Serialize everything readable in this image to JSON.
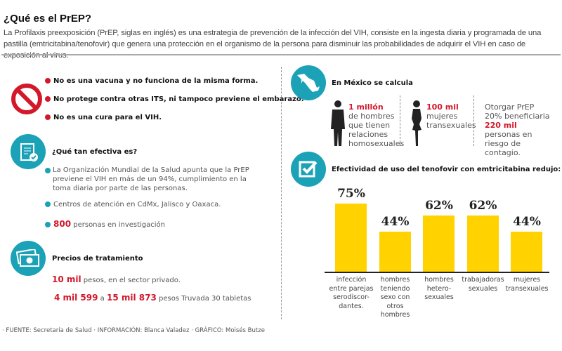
{
  "header": {
    "title": "¿Qué es el PrEP?",
    "intro": "La Profilaxis preexposición (PrEP, siglas en inglés) es una estrategia de prevención de la infección del VIH, consiste en la ingesta diaria y programada de una pastilla (emtricitabina/tenofovir) que genera una protección en el organismo de la persona para disminuir las probabilidades de adquirir el VIH en caso de exposición al virus."
  },
  "not_list": [
    "No es una vacuna y no funciona de la misma forma.",
    "No protege contra otras ITS, ni tampoco previene el embarazo.",
    "No es una cura para el VIH."
  ],
  "efectiva": {
    "title": "¿Qué tan efectiva es?",
    "items": [
      "La Organización Mundial de la Salud apunta que la PrEP previene el VIH en más de un 94%, cumplimiento en la toma diaria por parte de las personas.",
      "Centros de atención en CdMx, Jalisco y Oaxaca."
    ],
    "count": "800",
    "count_text": " personas en investigación"
  },
  "precios": {
    "title": "Precios de tratamiento",
    "p1_num": "10 mil",
    "p1_text": " pesos, en el sector privado.",
    "p2_a": "4 mil 599",
    "p2_mid": " a ",
    "p2_b": "15 mil 873",
    "p2_text": " pesos Truvada 30 tabletas"
  },
  "mexico": {
    "title": "En México se calcula",
    "men_num": "1 millón",
    "men_text": "de hombres que tienen relaciones homosexuales",
    "women_num": "100 mil",
    "women_text": "mujeres transexuales",
    "prep_a": "Otorgar PrEP 20% beneficiaria ",
    "prep_num": "220 mil",
    "prep_b": " personas en riesgo de contagio."
  },
  "footer": "· FUENTE: Secretaría de Salud · INFORMACIÓN: Blanca Valadez · GRÁFICO: Moisés Butze",
  "colors": {
    "teal": "#1ba2b7",
    "red": "#d3182a",
    "bar": "#ffd200"
  },
  "chart_data": {
    "type": "bar",
    "title": "Efectividad de uso del tenofovir con emtricitabina redujo:",
    "categories": [
      "infección entre parejas serodiscor-dantes.",
      "hombres teniendo sexo con otros hombres",
      "hombres hetero-sexuales",
      "trabajadoras sexuales",
      "mujeres transexuales"
    ],
    "values": [
      75,
      44,
      62,
      62,
      44
    ],
    "labels": [
      "75%",
      "44%",
      "62%",
      "62%",
      "44%"
    ],
    "ylim": [
      0,
      75
    ],
    "grid": false
  }
}
